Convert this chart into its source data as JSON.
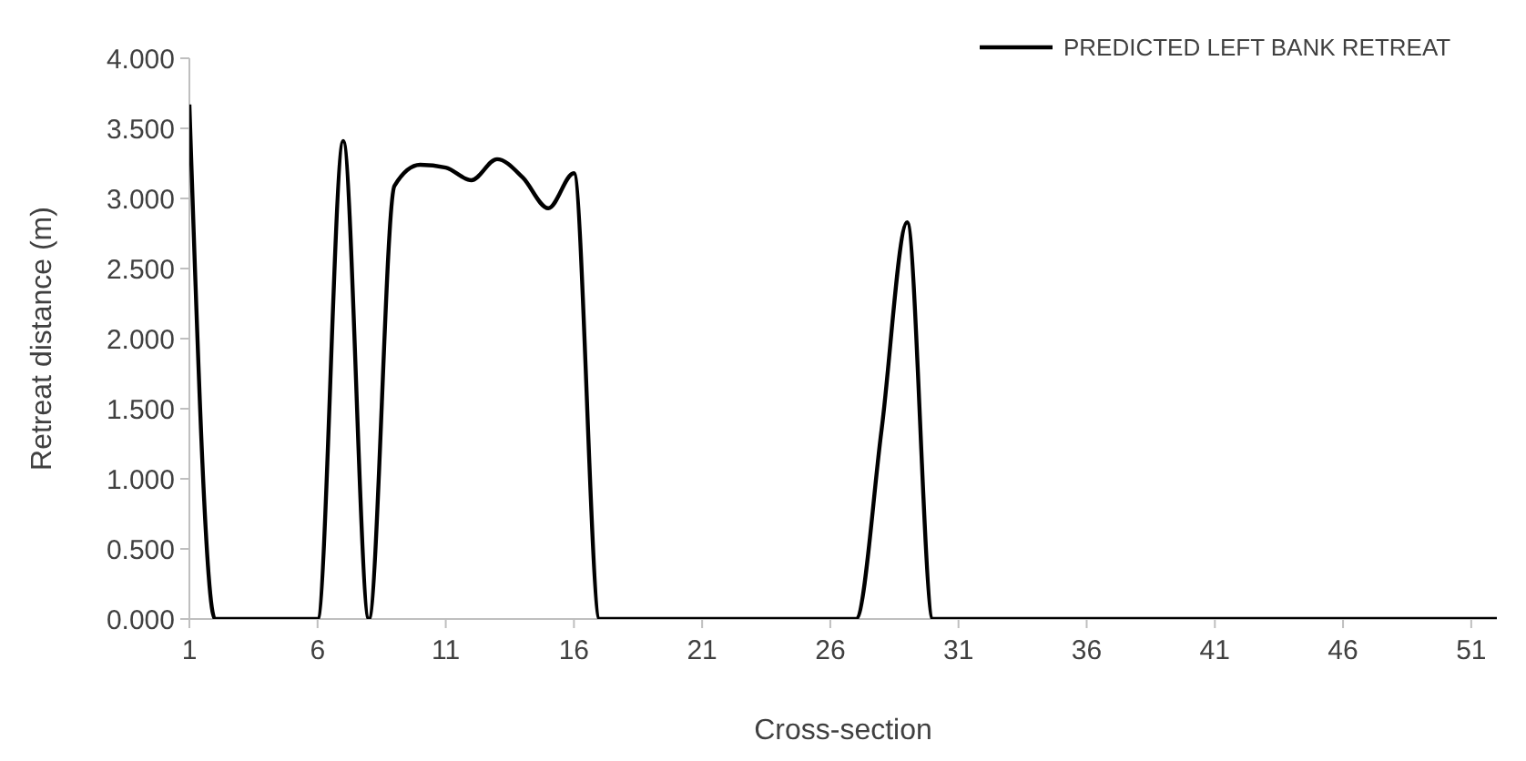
{
  "chart_data": {
    "type": "line",
    "xlabel": "Cross-section",
    "ylabel": "Retreat distance (m)",
    "x": [
      1,
      2,
      3,
      4,
      5,
      6,
      7,
      8,
      9,
      10,
      11,
      12,
      13,
      14,
      15,
      16,
      17,
      18,
      19,
      20,
      21,
      22,
      23,
      24,
      25,
      26,
      27,
      28,
      29,
      30,
      31,
      32,
      33,
      34,
      35,
      36,
      37,
      38,
      39,
      40,
      41,
      42,
      43,
      44,
      45,
      46,
      47,
      48,
      49,
      50,
      51,
      52
    ],
    "series": [
      {
        "name": "PREDICTED LEFT BANK RETREAT",
        "color": "#000000",
        "values": [
          3.67,
          0,
          0,
          0,
          0,
          0,
          3.41,
          0,
          3.09,
          3.24,
          3.22,
          3.13,
          3.28,
          3.15,
          2.93,
          3.18,
          0,
          0,
          0,
          0,
          0,
          0,
          0,
          0,
          0,
          0,
          0,
          1.35,
          2.83,
          0,
          0,
          0,
          0,
          0,
          0,
          0,
          0,
          0,
          0,
          0,
          0,
          0,
          0,
          0,
          0,
          0,
          0,
          0,
          0,
          0,
          0,
          0
        ]
      }
    ],
    "xlim": [
      1,
      52
    ],
    "xticks": [
      1,
      6,
      11,
      16,
      21,
      26,
      31,
      36,
      41,
      46,
      51
    ],
    "ylim": [
      0,
      4
    ],
    "yticks": [
      {
        "value": 0,
        "label": "0.000"
      },
      {
        "value": 0.5,
        "label": "0.500"
      },
      {
        "value": 1,
        "label": "1.000"
      },
      {
        "value": 1.5,
        "label": "1.500"
      },
      {
        "value": 2,
        "label": "2.000"
      },
      {
        "value": 2.5,
        "label": "2.500"
      },
      {
        "value": 3,
        "label": "3.000"
      },
      {
        "value": 3.5,
        "label": "3.500"
      },
      {
        "value": 4,
        "label": "4.000"
      }
    ],
    "grid": false,
    "legend": "top right",
    "marker": "none",
    "line_style": "solid"
  }
}
